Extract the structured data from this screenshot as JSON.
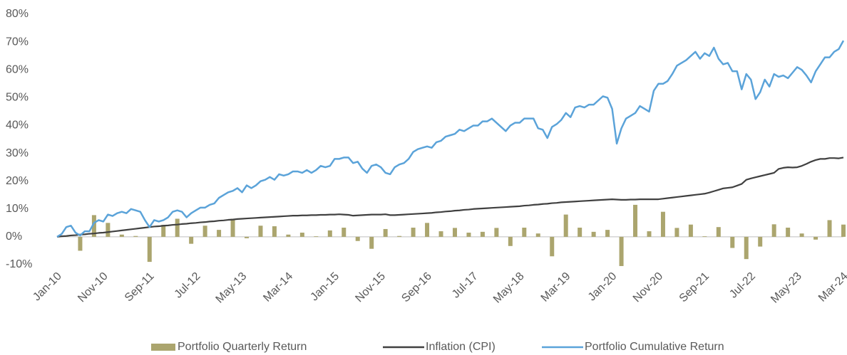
{
  "chart_data": {
    "type": "combo",
    "categories": [
      "Jan-10",
      null,
      null,
      null,
      null,
      null,
      null,
      null,
      null,
      null,
      "Nov-10",
      null,
      null,
      null,
      null,
      null,
      null,
      null,
      null,
      null,
      "Sep-11",
      null,
      null,
      null,
      null,
      null,
      null,
      null,
      null,
      null,
      "Jul-12",
      null,
      null,
      null,
      null,
      null,
      null,
      null,
      null,
      null,
      "May-13",
      null,
      null,
      null,
      null,
      null,
      null,
      null,
      null,
      null,
      "Mar-14",
      null,
      null,
      null,
      null,
      null,
      null,
      null,
      null,
      null,
      "Jan-15",
      null,
      null,
      null,
      null,
      null,
      null,
      null,
      null,
      null,
      "Nov-15",
      null,
      null,
      null,
      null,
      null,
      null,
      null,
      null,
      null,
      "Sep-16",
      null,
      null,
      null,
      null,
      null,
      null,
      null,
      null,
      null,
      "Jul-17",
      null,
      null,
      null,
      null,
      null,
      null,
      null,
      null,
      null,
      "May-18",
      null,
      null,
      null,
      null,
      null,
      null,
      null,
      null,
      null,
      "Mar-19",
      null,
      null,
      null,
      null,
      null,
      null,
      null,
      null,
      null,
      "Jan-20",
      null,
      null,
      null,
      null,
      null,
      null,
      null,
      null,
      null,
      "Nov-20",
      null,
      null,
      null,
      null,
      null,
      null,
      null,
      null,
      null,
      "Sep-21",
      null,
      null,
      null,
      null,
      null,
      null,
      null,
      null,
      null,
      "Jul-22",
      null,
      null,
      null,
      null,
      null,
      null,
      null,
      null,
      null,
      "May-23",
      null,
      null,
      null,
      null,
      null,
      null,
      null,
      null,
      null,
      "Mar-24"
    ],
    "series": [
      {
        "name": "Portfolio Quarterly Return",
        "kind": "bar",
        "color": "#aba56e",
        "values": [
          null,
          null,
          0.3,
          null,
          null,
          -5,
          null,
          null,
          7.8,
          null,
          null,
          5,
          null,
          null,
          0.8,
          null,
          null,
          0.3,
          null,
          null,
          -9,
          null,
          null,
          4.3,
          null,
          null,
          6.5,
          null,
          null,
          -2.5,
          null,
          null,
          4,
          null,
          null,
          2.5,
          null,
          null,
          6.5,
          null,
          null,
          -0.5,
          null,
          null,
          4,
          null,
          null,
          3.8,
          null,
          null,
          0.8,
          null,
          null,
          1.5,
          null,
          null,
          0.2,
          null,
          null,
          2.3,
          null,
          null,
          3.3,
          null,
          null,
          -1.5,
          null,
          null,
          -4.3,
          null,
          null,
          2.8,
          null,
          null,
          0.3,
          null,
          null,
          3.3,
          null,
          null,
          5,
          null,
          null,
          2,
          null,
          null,
          3.2,
          null,
          null,
          1.5,
          null,
          null,
          1.8,
          null,
          null,
          3.2,
          null,
          null,
          -3.3,
          null,
          null,
          3.3,
          null,
          null,
          1.2,
          null,
          null,
          -7,
          null,
          null,
          8,
          null,
          null,
          3.3,
          null,
          null,
          1.8,
          null,
          null,
          2.5,
          null,
          null,
          -10.5,
          null,
          null,
          11.5,
          null,
          null,
          2,
          null,
          null,
          9,
          null,
          null,
          3.2,
          null,
          null,
          4.4,
          null,
          null,
          0.2,
          null,
          null,
          3.5,
          null,
          null,
          -4,
          null,
          null,
          -8,
          null,
          null,
          -3.5,
          null,
          null,
          4.5,
          null,
          null,
          3.3,
          null,
          null,
          1.2,
          null,
          null,
          -1,
          null,
          null,
          6,
          null,
          null,
          4.4
        ]
      },
      {
        "name": "Inflation (CPI)",
        "kind": "line",
        "color": "#404040",
        "values": [
          0,
          0.2,
          0.3,
          0.5,
          0.6,
          0.8,
          0.9,
          1.1,
          1.2,
          1.4,
          1.5,
          1.7,
          1.9,
          2.1,
          2.3,
          2.5,
          2.7,
          2.9,
          3.1,
          3.3,
          3.5,
          3.7,
          3.8,
          4.0,
          4.1,
          4.3,
          4.4,
          4.6,
          4.7,
          4.9,
          5.0,
          5.2,
          5.3,
          5.5,
          5.6,
          5.8,
          5.9,
          6.1,
          6.2,
          6.4,
          6.5,
          6.6,
          6.7,
          6.8,
          6.9,
          7.0,
          7.1,
          7.2,
          7.3,
          7.4,
          7.5,
          7.6,
          7.6,
          7.7,
          7.7,
          7.8,
          7.8,
          7.9,
          7.9,
          8.0,
          8.0,
          8.1,
          8.0,
          7.9,
          7.6,
          7.7,
          7.8,
          7.9,
          8.0,
          8.0,
          8.0,
          8.1,
          7.8,
          7.8,
          7.9,
          8.0,
          8.1,
          8.2,
          8.3,
          8.4,
          8.5,
          8.6,
          8.8,
          8.9,
          9.1,
          9.2,
          9.4,
          9.5,
          9.7,
          9.8,
          10.0,
          10.1,
          10.2,
          10.3,
          10.4,
          10.5,
          10.6,
          10.7,
          10.8,
          10.9,
          11.0,
          11.2,
          11.3,
          11.5,
          11.6,
          11.8,
          11.9,
          12.1,
          12.2,
          12.4,
          12.5,
          12.6,
          12.7,
          12.8,
          12.9,
          13.0,
          13.1,
          13.2,
          13.3,
          13.4,
          13.5,
          13.4,
          13.3,
          13.3,
          13.4,
          13.4,
          13.5,
          13.5,
          13.5,
          13.5,
          13.5,
          13.7,
          13.9,
          14.1,
          14.3,
          14.5,
          14.7,
          14.9,
          15.1,
          15.3,
          15.5,
          15.9,
          16.4,
          16.9,
          17.4,
          17.6,
          17.8,
          18.4,
          19.0,
          20.5,
          21.0,
          21.4,
          21.8,
          22.2,
          22.6,
          23.0,
          24.4,
          24.8,
          25.0,
          24.9,
          25.0,
          25.5,
          26.2,
          27.0,
          27.6,
          28.0,
          28.0,
          28.3,
          28.3,
          28.2,
          28.5
        ]
      },
      {
        "name": "Portfolio Cumulative Return",
        "kind": "line",
        "color": "#5ba3d9",
        "values": [
          0,
          1,
          3.5,
          4,
          1.5,
          0.5,
          2,
          2,
          5,
          6,
          5.5,
          8,
          7.5,
          8.5,
          9,
          8.5,
          10,
          9.5,
          9,
          6,
          3.5,
          6,
          5.5,
          6,
          7,
          9,
          9.5,
          9,
          7,
          8.5,
          9.5,
          10.5,
          10.5,
          11.5,
          12,
          14,
          15,
          16,
          16.5,
          17.5,
          16,
          18.5,
          17.5,
          18.5,
          20,
          20.5,
          21.5,
          20.5,
          22.5,
          22,
          22.5,
          23.5,
          23.5,
          23,
          24,
          23,
          24,
          25.5,
          25,
          25.5,
          28,
          28,
          28.5,
          28.5,
          26.5,
          27,
          24.5,
          23,
          25.5,
          26,
          25,
          23,
          22.5,
          25,
          26,
          26.5,
          28,
          30.5,
          31.5,
          32,
          32.5,
          32,
          34,
          34.5,
          36,
          36.5,
          37,
          38.5,
          38,
          39,
          40,
          40,
          41.5,
          41.5,
          42.5,
          41,
          39.5,
          38,
          40,
          41,
          41,
          42.5,
          42.5,
          42.5,
          39,
          38.5,
          35.5,
          39.5,
          40.5,
          42,
          44.5,
          43,
          46.5,
          47,
          46.5,
          47.5,
          47.5,
          49,
          50.5,
          50,
          46,
          33.5,
          39,
          42.5,
          43.5,
          44.5,
          47,
          46,
          45,
          52.5,
          55,
          55,
          56,
          58.5,
          61.5,
          62.5,
          63.5,
          65,
          66.5,
          64,
          66,
          65,
          68,
          64,
          62,
          62.5,
          59.5,
          59.5,
          53,
          58.5,
          56.5,
          49.5,
          52,
          56.5,
          54,
          58.5,
          57.5,
          58,
          57,
          59,
          61,
          60,
          58,
          55.5,
          59.5,
          62,
          64.5,
          64.5,
          66.5,
          67.5,
          70.5
        ]
      }
    ],
    "ylim": [
      -10,
      80
    ],
    "yticks": [
      {
        "value": -10,
        "label": "-10%"
      },
      {
        "value": 0,
        "label": "0%"
      },
      {
        "value": 10,
        "label": "10%"
      },
      {
        "value": 20,
        "label": "20%"
      },
      {
        "value": 30,
        "label": "30%"
      },
      {
        "value": 40,
        "label": "40%"
      },
      {
        "value": 50,
        "label": "50%"
      },
      {
        "value": 60,
        "label": "60%"
      },
      {
        "value": 70,
        "label": "70%"
      },
      {
        "value": 80,
        "label": "80%"
      }
    ],
    "grid": false,
    "legend": "bottom"
  }
}
